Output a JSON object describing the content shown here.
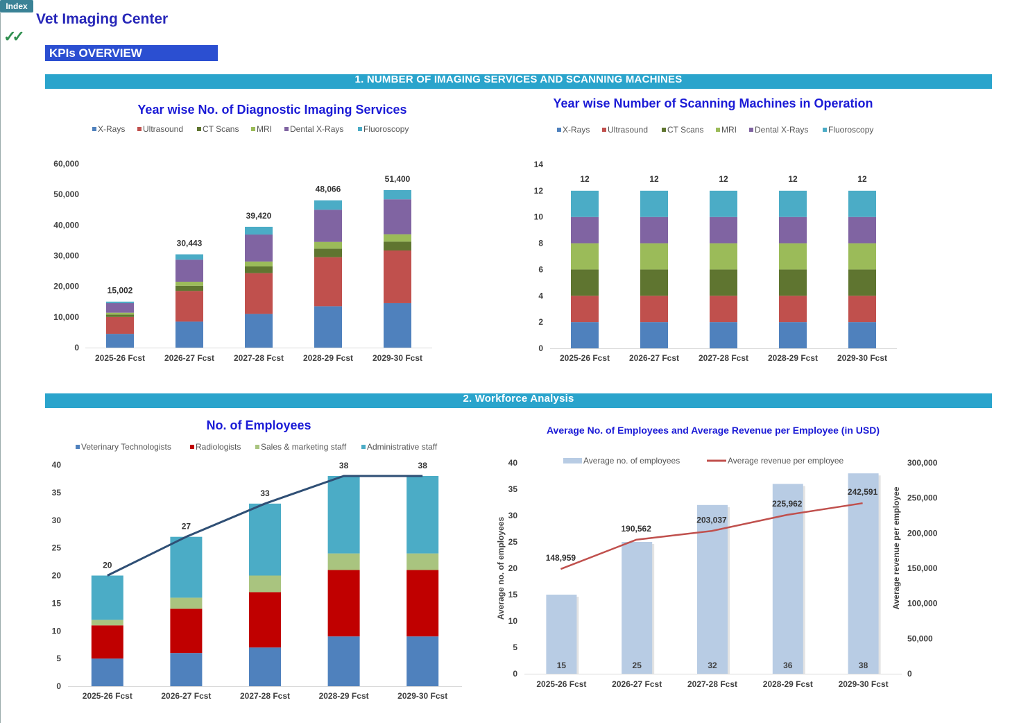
{
  "header": {
    "index_label": "Index",
    "check_icon": "double-check-icon",
    "app_title": "Vet Imaging Center",
    "kpi_label": "KPIs OVERVIEW"
  },
  "sections": {
    "s1": "1. NUMBER OF IMAGING SERVICES AND SCANNING MACHINES",
    "s2": "2. Workforce Analysis"
  },
  "colors": {
    "accent_band": "#2aa4cc",
    "kpi_box": "#2b4fd1",
    "title_blue": "#1b1bd6"
  },
  "chart_data": [
    {
      "type": "bar",
      "stacked": true,
      "title": "Year wise No. of Diagnostic Imaging Services",
      "categories": [
        "2025-26 Fcst",
        "2026-27 Fcst",
        "2027-28 Fcst",
        "2028-29 Fcst",
        "2029-30 Fcst"
      ],
      "series": [
        {
          "name": "X-Rays",
          "color": "#4f81bd",
          "values": [
            4500,
            8500,
            11000,
            13500,
            14500
          ]
        },
        {
          "name": "Ultrasound",
          "color": "#c0504d",
          "values": [
            5500,
            10000,
            13300,
            16000,
            17200
          ]
        },
        {
          "name": "CT Scans",
          "color": "#5f7530",
          "values": [
            800,
            1700,
            2200,
            2800,
            2900
          ]
        },
        {
          "name": "MRI",
          "color": "#9bbb59",
          "values": [
            600,
            1300,
            1600,
            2200,
            2400
          ]
        },
        {
          "name": "Dental X-Rays",
          "color": "#8064a2",
          "values": [
            3100,
            7200,
            8800,
            10500,
            11400
          ]
        },
        {
          "name": "Fluoroscopy",
          "color": "#4bacc6",
          "values": [
            502,
            1743,
            2520,
            3066,
            3000
          ]
        }
      ],
      "totals": [
        15002,
        30443,
        39420,
        48066,
        51400
      ],
      "total_labels": [
        "15,002",
        "30,443",
        "39,420",
        "48,066",
        "51,400"
      ],
      "ylim": [
        0,
        60000
      ],
      "yticks": [
        0,
        10000,
        20000,
        30000,
        40000,
        50000,
        60000
      ],
      "ytick_labels": [
        "0",
        "10,000",
        "20,000",
        "30,000",
        "40,000",
        "50,000",
        "60,000"
      ],
      "grid": false,
      "legend": "top"
    },
    {
      "type": "bar",
      "stacked": true,
      "title": "Year wise Number of Scanning Machines in Operation",
      "categories": [
        "2025-26 Fcst",
        "2026-27 Fcst",
        "2027-28 Fcst",
        "2028-29 Fcst",
        "2029-30 Fcst"
      ],
      "series": [
        {
          "name": "X-Rays",
          "color": "#4f81bd",
          "values": [
            2,
            2,
            2,
            2,
            2
          ]
        },
        {
          "name": "Ultrasound",
          "color": "#c0504d",
          "values": [
            2,
            2,
            2,
            2,
            2
          ]
        },
        {
          "name": "CT Scans",
          "color": "#5f7530",
          "values": [
            2,
            2,
            2,
            2,
            2
          ]
        },
        {
          "name": "MRI",
          "color": "#9bbb59",
          "values": [
            2,
            2,
            2,
            2,
            2
          ]
        },
        {
          "name": "Dental X-Rays",
          "color": "#8064a2",
          "values": [
            2,
            2,
            2,
            2,
            2
          ]
        },
        {
          "name": "Fluoroscopy",
          "color": "#4bacc6",
          "values": [
            2,
            2,
            2,
            2,
            2
          ]
        }
      ],
      "totals": [
        12,
        12,
        12,
        12,
        12
      ],
      "total_labels": [
        "12",
        "12",
        "12",
        "12",
        "12"
      ],
      "ylim": [
        0,
        14
      ],
      "yticks": [
        0,
        2,
        4,
        6,
        8,
        10,
        12,
        14
      ],
      "ytick_labels": [
        "0",
        "2",
        "4",
        "6",
        "8",
        "10",
        "12",
        "14"
      ],
      "grid": false,
      "legend": "top"
    },
    {
      "type": "bar",
      "stacked": true,
      "title": "No. of Employees",
      "categories": [
        "2025-26 Fcst",
        "2026-27 Fcst",
        "2027-28 Fcst",
        "2028-29 Fcst",
        "2029-30 Fcst"
      ],
      "series": [
        {
          "name": "Veterinary Technologists",
          "color": "#4f81bd",
          "values": [
            5,
            6,
            7,
            9,
            9
          ]
        },
        {
          "name": "Radiologists",
          "color": "#c00000",
          "values": [
            6,
            8,
            10,
            12,
            12
          ]
        },
        {
          "name": "Sales & marketing staff",
          "color": "#a9c47f",
          "values": [
            1,
            2,
            3,
            3,
            3
          ]
        },
        {
          "name": "Administrative staff",
          "color": "#4bacc6",
          "values": [
            8,
            11,
            13,
            14,
            14
          ]
        }
      ],
      "totals": [
        20,
        27,
        33,
        38,
        38
      ],
      "total_labels": [
        "20",
        "27",
        "33",
        "38",
        "38"
      ],
      "total_line_color": "#2f4f75",
      "ylim": [
        0,
        40
      ],
      "yticks": [
        0,
        5,
        10,
        15,
        20,
        25,
        30,
        35,
        40
      ],
      "ytick_labels": [
        "0",
        "5",
        "10",
        "15",
        "20",
        "25",
        "30",
        "35",
        "40"
      ],
      "grid": false,
      "legend": "top"
    },
    {
      "type": "bar",
      "combo": "bar+line",
      "title": "Average No. of Employees and Average Revenue per Employee (in USD)",
      "categories": [
        "2025-26 Fcst",
        "2026-27 Fcst",
        "2027-28 Fcst",
        "2028-29 Fcst",
        "2029-30 Fcst"
      ],
      "bar_series": {
        "name": "Average no. of employees",
        "color": "#b8cce4",
        "values": [
          15,
          25,
          32,
          36,
          38
        ],
        "labels": [
          "15",
          "25",
          "32",
          "36",
          "38"
        ]
      },
      "line_series": {
        "name": "Average revenue per employee",
        "color": "#c0504d",
        "values": [
          148959,
          190562,
          203037,
          225962,
          242591
        ],
        "labels": [
          "148,959",
          "190,562",
          "203,037",
          "225,962",
          "242,591"
        ]
      },
      "ylabel": "Average no. of  employees",
      "y2label": "Average revenue per employee",
      "ylim": [
        0,
        40
      ],
      "yticks": [
        0,
        5,
        10,
        15,
        20,
        25,
        30,
        35,
        40
      ],
      "ytick_labels": [
        "0",
        "5",
        "10",
        "15",
        "20",
        "25",
        "30",
        "35",
        "40"
      ],
      "y2lim": [
        0,
        300000
      ],
      "y2ticks": [
        0,
        50000,
        100000,
        150000,
        200000,
        250000,
        300000
      ],
      "y2tick_labels": [
        "0",
        "50,000",
        "100,000",
        "150,000",
        "200,000",
        "250,000",
        "300,000"
      ],
      "grid": false,
      "legend": "top"
    }
  ]
}
